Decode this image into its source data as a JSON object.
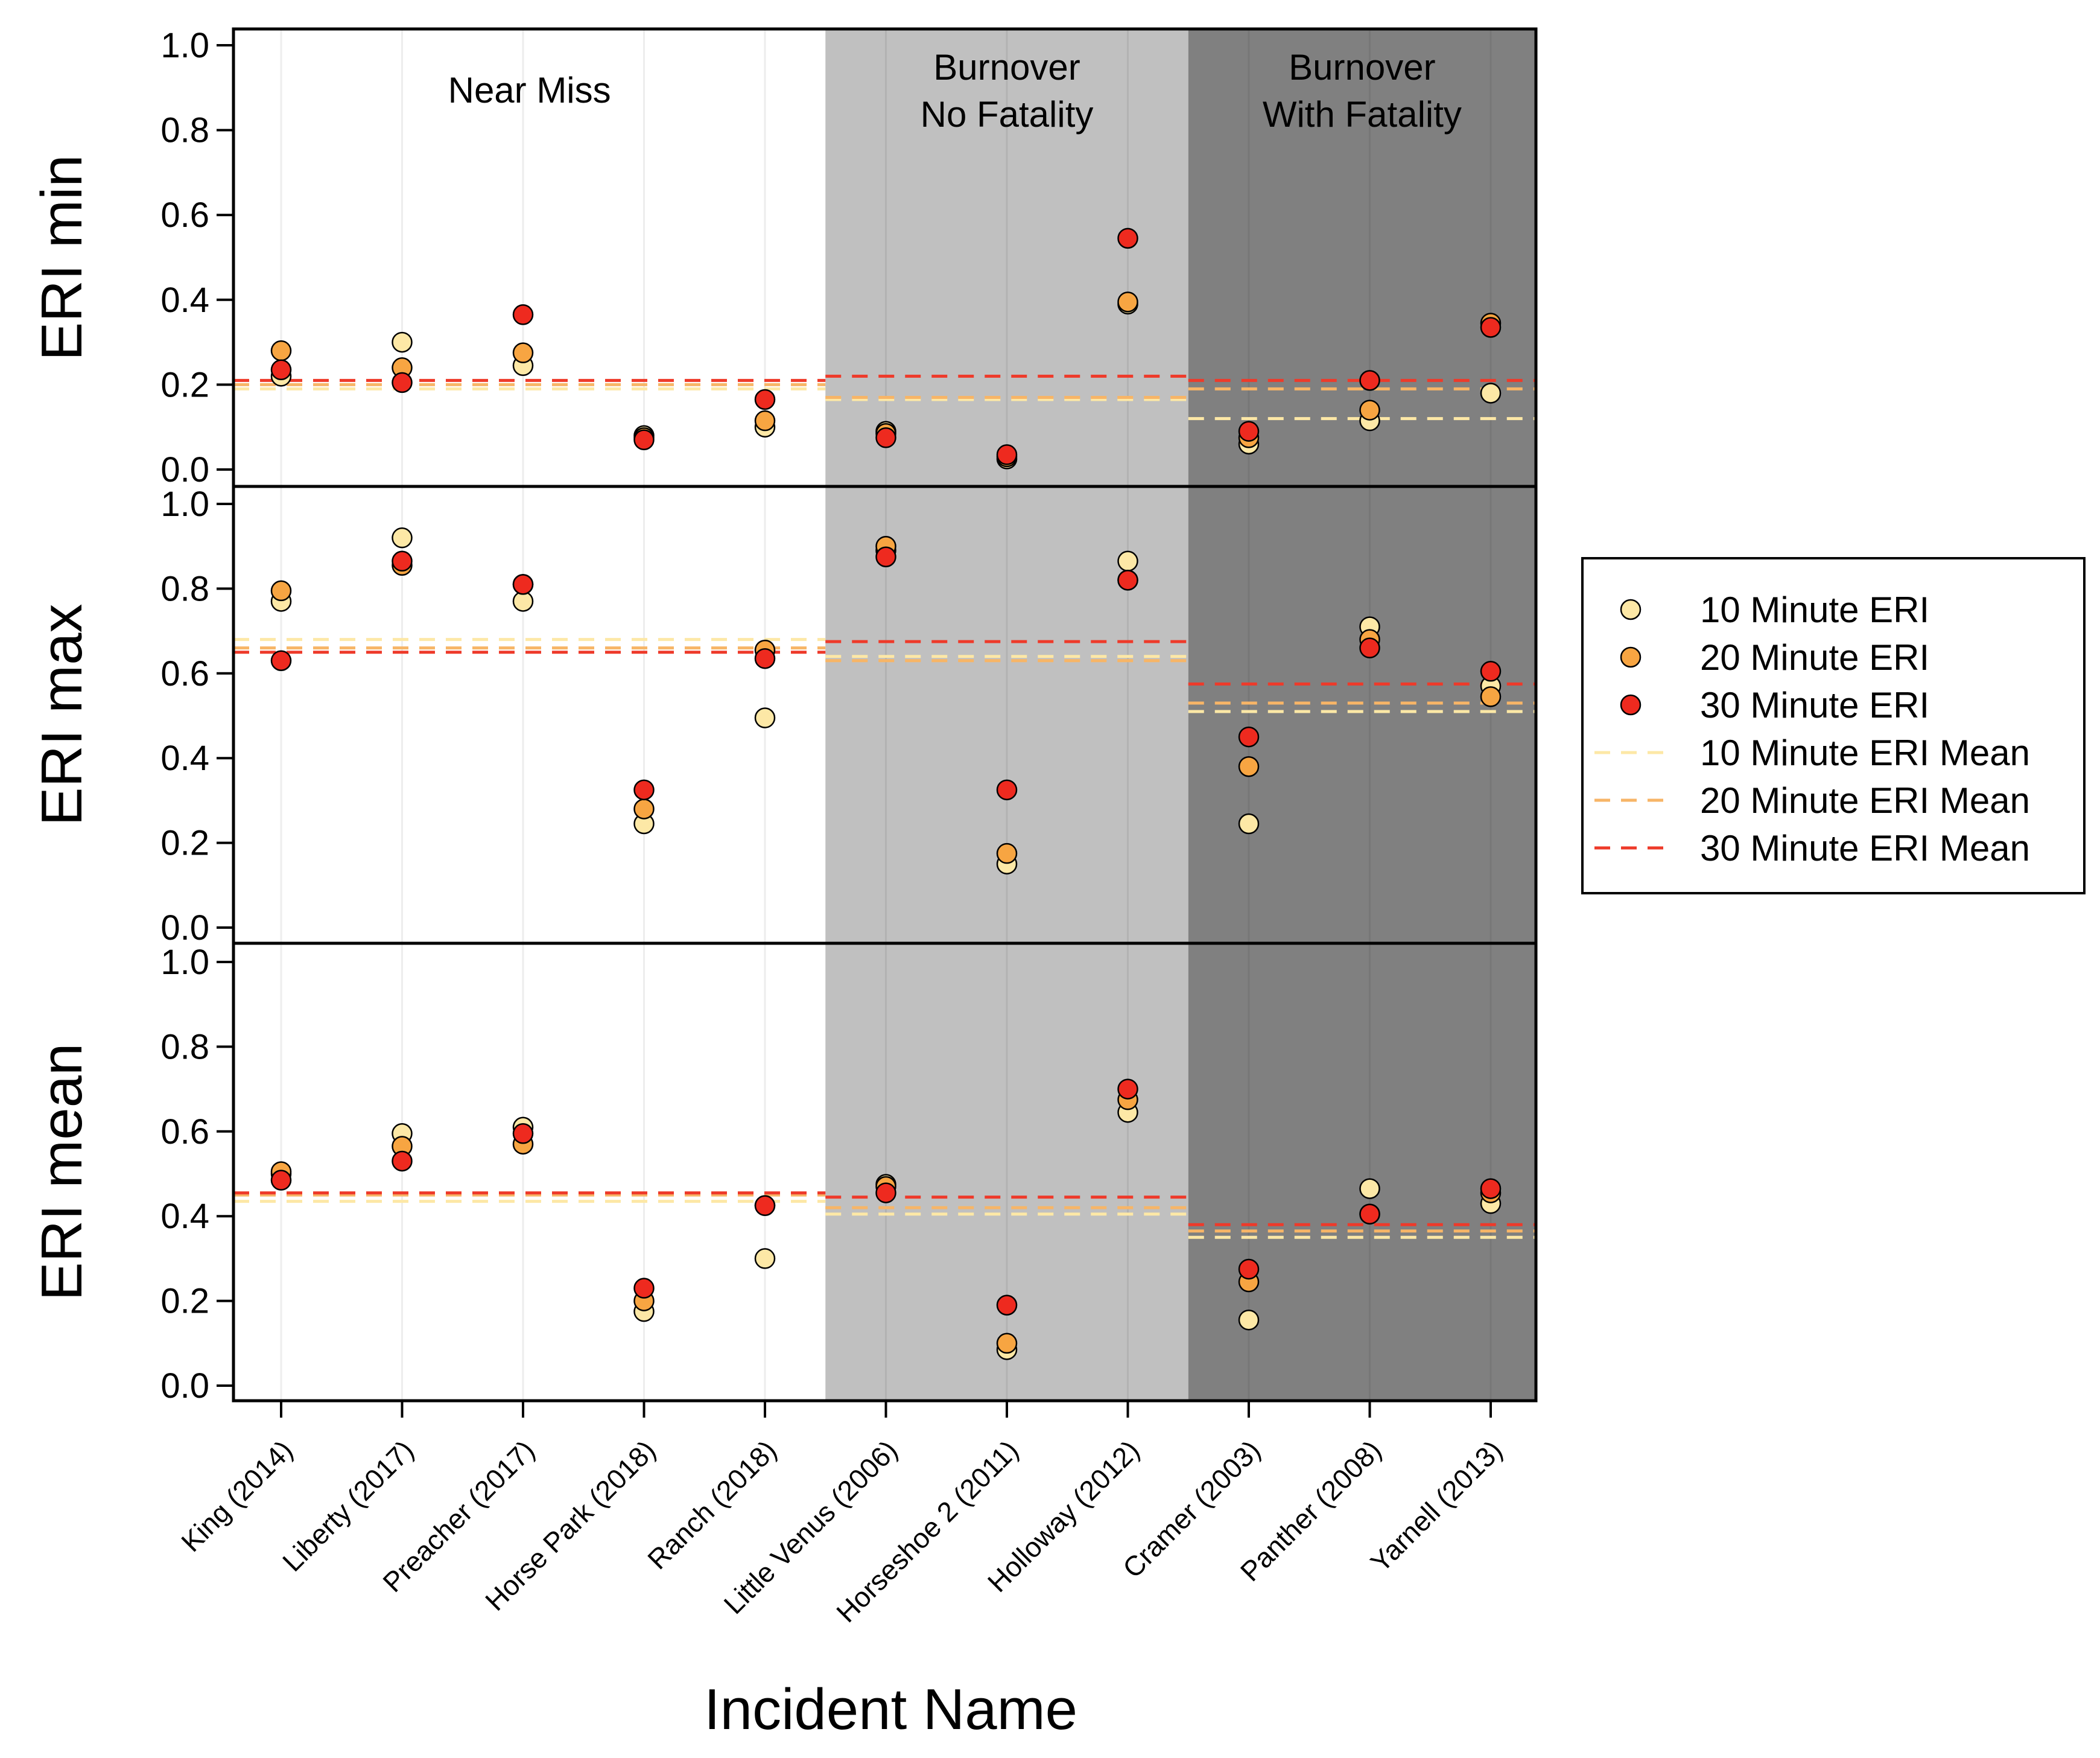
{
  "chart_data": {
    "type": "scatter",
    "xlabel": "Incident Name",
    "categories": [
      "King (2014)",
      "Liberty (2017)",
      "Preacher (2017)",
      "Horse Park (2018)",
      "Ranch (2018)",
      "Little Venus (2006)",
      "Horseshoe 2 (2011)",
      "Holloway (2012)",
      "Cramer (2003)",
      "Panther (2008)",
      "Yarnell (2013)"
    ],
    "groups": [
      {
        "label": [
          "Near Miss"
        ],
        "start": 0,
        "end": 4,
        "shade": "#ffffff"
      },
      {
        "label": [
          "Burnover",
          "No Fatality"
        ],
        "start": 5,
        "end": 7,
        "shade": "#c0c0c0"
      },
      {
        "label": [
          "Burnover",
          "With Fatality"
        ],
        "start": 8,
        "end": 10,
        "shade": "#808080"
      }
    ],
    "series_styles": [
      {
        "name": "10 Minute ERI",
        "color": "#fde8a6"
      },
      {
        "name": "20 Minute ERI",
        "color": "#f7a542"
      },
      {
        "name": "30 Minute ERI",
        "color": "#ee2a1f"
      }
    ],
    "mean_styles": [
      {
        "name": "10 Minute ERI Mean",
        "color": "#fde8a6"
      },
      {
        "name": "20 Minute ERI Mean",
        "color": "#f7b567"
      },
      {
        "name": "30 Minute ERI Mean",
        "color": "#ee3a2a"
      }
    ],
    "ylim": [
      0,
      1
    ],
    "yticks": [
      "0.0",
      "0.2",
      "0.4",
      "0.6",
      "0.8",
      "1.0"
    ],
    "panels": [
      {
        "ylabel": "ERI min",
        "series": [
          {
            "name": "10 Minute ERI",
            "values": [
              0.22,
              0.3,
              0.245,
              0.08,
              0.1,
              0.09,
              0.025,
              0.39,
              0.06,
              0.115,
              0.18
            ]
          },
          {
            "name": "20 Minute ERI",
            "values": [
              0.28,
              0.24,
              0.275,
              0.075,
              0.115,
              0.085,
              0.03,
              0.395,
              0.075,
              0.14,
              0.345
            ]
          },
          {
            "name": "30 Minute ERI",
            "values": [
              0.235,
              0.205,
              0.365,
              0.07,
              0.165,
              0.075,
              0.035,
              0.545,
              0.09,
              0.21,
              0.335
            ]
          }
        ],
        "means": [
          {
            "name": "10 Minute ERI Mean",
            "values": [
              0.19,
              0.165,
              0.12
            ]
          },
          {
            "name": "20 Minute ERI Mean",
            "values": [
              0.2,
              0.17,
              0.19
            ]
          },
          {
            "name": "30 Minute ERI Mean",
            "values": [
              0.21,
              0.22,
              0.21
            ]
          }
        ]
      },
      {
        "ylabel": "ERI max",
        "series": [
          {
            "name": "10 Minute ERI",
            "values": [
              0.77,
              0.92,
              0.77,
              0.245,
              0.495,
              0.89,
              0.15,
              0.865,
              0.245,
              0.71,
              0.57
            ]
          },
          {
            "name": "20 Minute ERI",
            "values": [
              0.795,
              0.855,
              0.81,
              0.28,
              0.655,
              0.9,
              0.175,
              0.82,
              0.38,
              0.68,
              0.545
            ]
          },
          {
            "name": "30 Minute ERI",
            "values": [
              0.63,
              0.865,
              0.81,
              0.325,
              0.635,
              0.875,
              0.325,
              0.82,
              0.45,
              0.66,
              0.605
            ]
          }
        ],
        "means": [
          {
            "name": "10 Minute ERI Mean",
            "values": [
              0.68,
              0.64,
              0.51
            ]
          },
          {
            "name": "20 Minute ERI Mean",
            "values": [
              0.66,
              0.63,
              0.53
            ]
          },
          {
            "name": "30 Minute ERI Mean",
            "values": [
              0.65,
              0.675,
              0.575
            ]
          }
        ]
      },
      {
        "ylabel": "ERI mean",
        "series": [
          {
            "name": "10 Minute ERI",
            "values": [
              0.5,
              0.595,
              0.61,
              0.175,
              0.3,
              0.475,
              0.085,
              0.645,
              0.155,
              0.465,
              0.43
            ]
          },
          {
            "name": "20 Minute ERI",
            "values": [
              0.505,
              0.565,
              0.57,
              0.2,
              0.425,
              0.47,
              0.1,
              0.675,
              0.245,
              0.405,
              0.455
            ]
          },
          {
            "name": "30 Minute ERI",
            "values": [
              0.485,
              0.53,
              0.595,
              0.23,
              0.425,
              0.455,
              0.19,
              0.7,
              0.275,
              0.405,
              0.465
            ]
          }
        ],
        "means": [
          {
            "name": "10 Minute ERI Mean",
            "values": [
              0.435,
              0.405,
              0.35
            ]
          },
          {
            "name": "20 Minute ERI Mean",
            "values": [
              0.45,
              0.42,
              0.365
            ]
          },
          {
            "name": "30 Minute ERI Mean",
            "values": [
              0.455,
              0.445,
              0.38
            ]
          }
        ]
      }
    ],
    "legend": {
      "position": "right",
      "entries": [
        "10 Minute ERI",
        "20 Minute ERI",
        "30 Minute ERI",
        "10 Minute ERI Mean",
        "20 Minute ERI Mean",
        "30 Minute ERI Mean"
      ]
    }
  }
}
